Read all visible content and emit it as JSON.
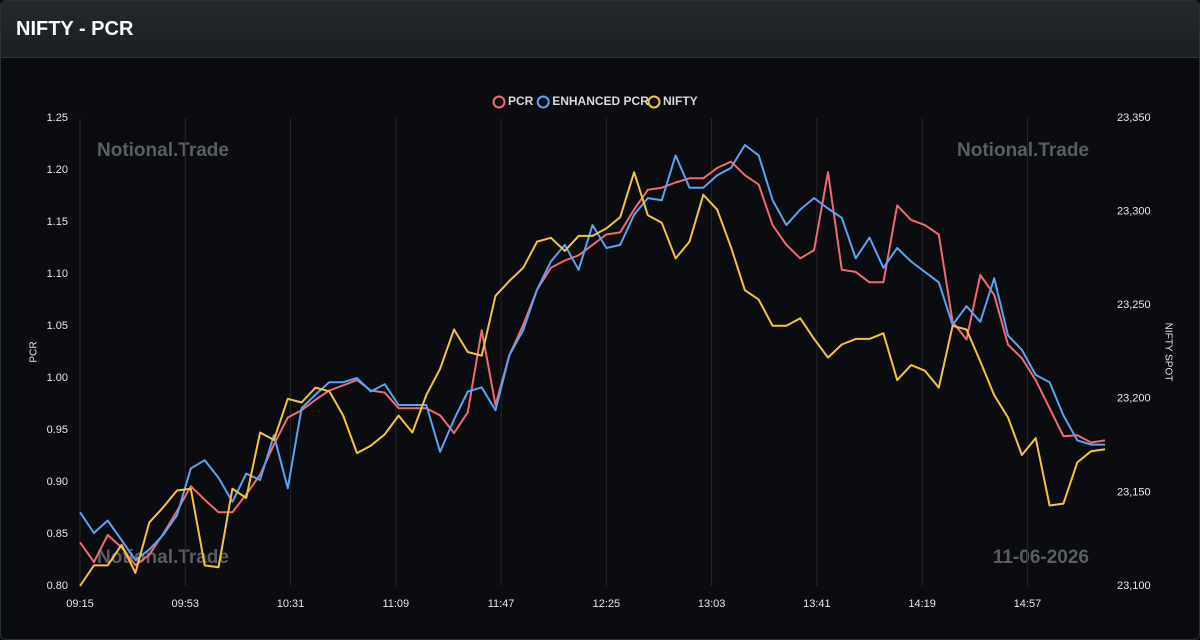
{
  "chart_data": {
    "type": "line",
    "title": "NIFTY - PCR",
    "y_label": "PCR",
    "y2_label": "NIFTY SPOT",
    "watermarks": [
      "Notional.Trade",
      "Notional.Trade",
      "Notional.Trade",
      "11-06-2026"
    ],
    "x": [
      555,
      560,
      565,
      570,
      575,
      580,
      585,
      590,
      595,
      600,
      605,
      610,
      615,
      620,
      625,
      630,
      635,
      640,
      645,
      650,
      655,
      660,
      665,
      670,
      675,
      680,
      685,
      690,
      695,
      700,
      705,
      710,
      715,
      720,
      725,
      730,
      735,
      740,
      745,
      750,
      755,
      760,
      765,
      770,
      775,
      780,
      785,
      790,
      795,
      800,
      805,
      810,
      815,
      820,
      825,
      830,
      835,
      840,
      845,
      850,
      855,
      860,
      865,
      870,
      875,
      880,
      885,
      890,
      895,
      900,
      905,
      910,
      915,
      920,
      925
    ],
    "xlim": [
      555,
      925
    ],
    "xticks": [
      {
        "value": 555,
        "label": "09:15"
      },
      {
        "value": 593,
        "label": "09:53"
      },
      {
        "value": 631,
        "label": "10:31"
      },
      {
        "value": 669,
        "label": "11:09"
      },
      {
        "value": 707,
        "label": "11:47"
      },
      {
        "value": 745,
        "label": "12:25"
      },
      {
        "value": 783,
        "label": "13:03"
      },
      {
        "value": 821,
        "label": "13:41"
      },
      {
        "value": 859,
        "label": "14:19"
      },
      {
        "value": 897,
        "label": "14:57"
      }
    ],
    "ylim": [
      0.8,
      1.25
    ],
    "yticks": [
      {
        "value": 0.8,
        "label": "0.80"
      },
      0.85,
      {
        "value": 0.9,
        "label": "0.90"
      },
      0.95,
      {
        "value": 1.0,
        "label": "1.00"
      },
      1.05,
      {
        "value": 1.1,
        "label": "1.10"
      },
      1.15,
      {
        "value": 1.2,
        "label": "1.20"
      },
      1.25
    ],
    "y2lim": [
      23100,
      23350
    ],
    "y2ticks": [
      {
        "value": 23100,
        "label": "23,100"
      },
      {
        "value": 23150,
        "label": "23,150"
      },
      {
        "value": 23200,
        "label": "23,200"
      },
      {
        "value": 23250,
        "label": "23,250"
      },
      {
        "value": 23300,
        "label": "23,300"
      },
      {
        "value": 23350,
        "label": "23,350"
      }
    ],
    "grid": "x",
    "legend": "top",
    "series": [
      {
        "name": "PCR",
        "color": "#f06a70",
        "values": [
          0.842,
          0.823,
          0.849,
          0.837,
          0.82,
          0.83,
          0.85,
          0.872,
          0.896,
          0.883,
          0.871,
          0.871,
          0.888,
          0.907,
          0.936,
          0.962,
          0.969,
          0.979,
          0.988,
          0.993,
          0.998,
          0.988,
          0.986,
          0.971,
          0.971,
          0.971,
          0.964,
          0.947,
          0.967,
          1.046,
          0.974,
          1.022,
          1.051,
          1.085,
          1.106,
          1.113,
          1.118,
          1.128,
          1.138,
          1.14,
          1.162,
          1.181,
          1.183,
          1.188,
          1.192,
          1.192,
          1.202,
          1.208,
          1.195,
          1.186,
          1.147,
          1.128,
          1.115,
          1.123,
          1.198,
          1.104,
          1.102,
          1.092,
          1.092,
          1.166,
          1.152,
          1.147,
          1.138,
          1.054,
          1.037,
          1.099,
          1.08,
          1.032,
          1.019,
          0.998,
          0.971,
          0.944,
          0.945,
          0.938,
          0.94
        ]
      },
      {
        "name": "ENHANCED PCR",
        "color": "#5da2f2",
        "values": [
          0.871,
          0.851,
          0.863,
          0.844,
          0.825,
          0.835,
          0.849,
          0.868,
          0.913,
          0.921,
          0.904,
          0.881,
          0.908,
          0.902,
          0.945,
          0.894,
          0.971,
          0.984,
          0.996,
          0.996,
          1.0,
          0.987,
          0.994,
          0.974,
          0.974,
          0.974,
          0.929,
          0.96,
          0.987,
          0.991,
          0.969,
          1.022,
          1.046,
          1.085,
          1.112,
          1.128,
          1.104,
          1.147,
          1.125,
          1.128,
          1.157,
          1.173,
          1.171,
          1.214,
          1.183,
          1.183,
          1.195,
          1.202,
          1.224,
          1.214,
          1.171,
          1.147,
          1.162,
          1.173,
          1.163,
          1.154,
          1.115,
          1.135,
          1.106,
          1.125,
          1.112,
          1.102,
          1.092,
          1.051,
          1.069,
          1.054,
          1.096,
          1.041,
          1.027,
          1.003,
          0.996,
          0.964,
          0.94,
          0.936,
          0.936
        ]
      },
      {
        "name": "NIFTY",
        "color": "#f3c33f",
        "axis": "y2",
        "values": [
          23100,
          23111,
          23111,
          23122,
          23107,
          23134,
          23142,
          23151,
          23152,
          23111,
          23110,
          23152,
          23147,
          23182,
          23178,
          23200,
          23198,
          23206,
          23204,
          23191,
          23171,
          23175,
          23181,
          23191,
          23182,
          23202,
          23216,
          23237,
          23225,
          23223,
          23255,
          23263,
          23270,
          23284,
          23286,
          23279,
          23287,
          23287,
          23291,
          23297,
          23321,
          23298,
          23294,
          23275,
          23284,
          23309,
          23301,
          23281,
          23258,
          23253,
          23239,
          23239,
          23243,
          23232,
          23222,
          23229,
          23232,
          23232,
          23235,
          23210,
          23218,
          23215,
          23206,
          23239,
          23237,
          23220,
          23202,
          23190,
          23170,
          23179,
          23143,
          23144,
          23166,
          23172,
          23173
        ]
      }
    ]
  }
}
